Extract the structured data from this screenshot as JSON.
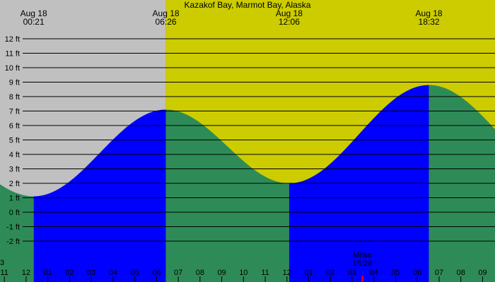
{
  "chart_data": {
    "type": "area",
    "title": "Kazakof Bay, Marmot Bay, Alaska",
    "y_unit_suffix": " ft",
    "ylim": [
      -3,
      12.8
    ],
    "y_ticks": [
      -2,
      -1,
      0,
      1,
      2,
      3,
      4,
      5,
      6,
      7,
      8,
      9,
      10,
      11,
      12
    ],
    "x_range_hours": [
      -1.2,
      21.57
    ],
    "x_tick_labels": [
      "11",
      "12",
      "01",
      "02",
      "03",
      "04",
      "05",
      "06",
      "07",
      "08",
      "09",
      "10",
      "11",
      "12",
      "01",
      "02",
      "03",
      "04",
      "05",
      "06",
      "07",
      "08",
      "09"
    ],
    "x_tick_hours": [
      -1,
      0,
      1,
      2,
      3,
      4,
      5,
      6,
      7,
      8,
      9,
      10,
      11,
      12,
      13,
      14,
      15,
      16,
      17,
      18,
      19,
      20,
      21
    ],
    "night_until_hour": 6.43,
    "tide_extremes": [
      {
        "hour": 0.35,
        "height_ft": 1.1,
        "type": "low"
      },
      {
        "hour": 6.43,
        "height_ft": 7.1,
        "type": "high"
      },
      {
        "hour": 12.1,
        "height_ft": 2.0,
        "type": "low"
      },
      {
        "hour": 18.53,
        "height_ft": 8.8,
        "type": "high"
      }
    ],
    "event_labels": [
      {
        "date": "Aug 18",
        "time": "00:21",
        "hour": 0.35
      },
      {
        "date": "Aug 18",
        "time": "06:26",
        "hour": 6.43
      },
      {
        "date": "Aug 18",
        "time": "12:06",
        "hour": 12.1
      },
      {
        "date": "Aug 18",
        "time": "18:32",
        "hour": 18.53
      }
    ],
    "moonrise": {
      "label": "Mrise",
      "time": "15:28",
      "hour": 15.47
    },
    "left_edge_label": "3",
    "colors": {
      "night": "#c0c0c0",
      "day": "#cccc00",
      "rising": "#0000ff",
      "falling": "#2e8b57",
      "grid": "#000000",
      "text": "#000000",
      "moon_marker": "#ff0000"
    }
  }
}
